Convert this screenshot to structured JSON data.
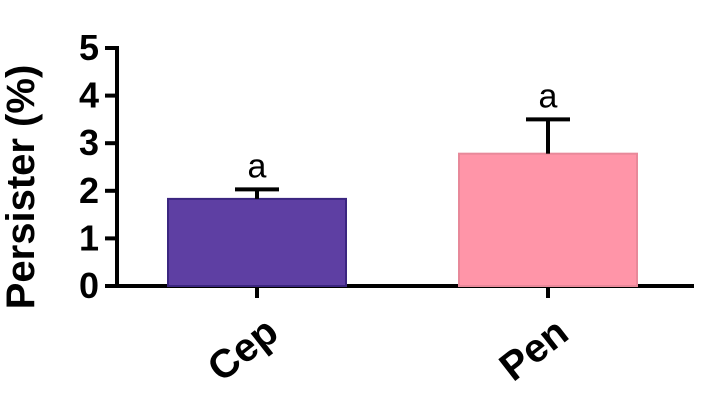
{
  "chart_data": {
    "type": "bar",
    "title": "",
    "xlabel": "",
    "ylabel": "Persister (%)",
    "ylim": [
      0,
      5
    ],
    "yticks": [
      "0",
      "1",
      "2",
      "3",
      "4",
      "5"
    ],
    "categories": [
      "Cep",
      "Pen"
    ],
    "values": [
      1.83,
      2.78
    ],
    "errors": [
      0.2,
      0.72
    ],
    "annotations": [
      "a",
      "a"
    ],
    "colors": [
      "#5e3fa3",
      "#ff95a8"
    ],
    "bar_edge_colors": [
      "#3b2680",
      "#e8899a"
    ],
    "grid": false,
    "legend": "none"
  }
}
